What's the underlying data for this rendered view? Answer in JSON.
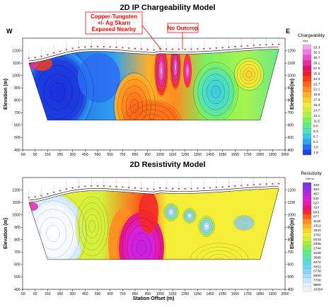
{
  "chart_data": [
    {
      "type": "heatmap",
      "title": "2D IP Chargeability Model",
      "ylabel": "Elevation (m)",
      "xlabel": "",
      "side_labels": {
        "left": "W",
        "right": "E"
      },
      "annotations": [
        {
          "text": [
            "Copper-Tungsten",
            "+/- Ag  Skarn",
            "Exposed Nearby"
          ]
        },
        {
          "text": [
            "No Outcrop"
          ]
        }
      ],
      "xlim": [
        -50,
        2050
      ],
      "ylim": [
        400,
        1300
      ],
      "x_ticks": [
        "-50",
        "50",
        "150",
        "250",
        "350",
        "450",
        "550",
        "650",
        "750",
        "850",
        "950",
        "1050",
        "1150",
        "1250",
        "1350",
        "1450",
        "1550",
        "1650",
        "1750",
        "1850",
        "1950",
        "2050"
      ],
      "y_ticks": [
        {
          "label": "1200",
          "value": 1200
        },
        {
          "label": "1100",
          "value": 1100
        },
        {
          "label": "1000",
          "value": 1000
        },
        {
          "label": "900",
          "value": 900
        },
        {
          "label": "800",
          "value": 800
        },
        {
          "label": "700",
          "value": 700
        },
        {
          "label": "600",
          "value": 600
        },
        {
          "label": "500",
          "value": 500
        },
        {
          "label": "400",
          "value": 400
        }
      ],
      "legend": {
        "title": "Chargeability",
        "unit": "ms/s",
        "levels": [
          "1.9",
          "3.5",
          "5.1",
          "6.7",
          "8.3",
          "9.9",
          "11.5",
          "13.1",
          "14.7",
          "16.3",
          "17.9",
          "19.5",
          "21.1",
          "22.7",
          "24.3",
          "25.9",
          "27.5",
          "29.1",
          "30.7",
          "32.3",
          "33.3"
        ],
        "colors": [
          "#1e40e0",
          "#2a6cf2",
          "#2fa0f2",
          "#39c9e4",
          "#4fe0c0",
          "#5fe890",
          "#7cf060",
          "#a6f450",
          "#cff040",
          "#f0ec38",
          "#ffd030",
          "#ffb028",
          "#ff8c20",
          "#ff6418",
          "#ff3c14",
          "#f01c28",
          "#e01464",
          "#e82aa0",
          "#ee50cc",
          "#f07ce4",
          "#f8a6f0"
        ]
      }
    },
    {
      "type": "heatmap",
      "title": "2D Resistivity Model",
      "ylabel": "Elevation (m)",
      "xlabel": "Station Offset (m)",
      "xlim": [
        -50,
        2050
      ],
      "ylim": [
        400,
        1300
      ],
      "x_ticks": [
        "-50",
        "50",
        "150",
        "250",
        "350",
        "450",
        "550",
        "650",
        "750",
        "850",
        "950",
        "1050",
        "1150",
        "1250",
        "1350",
        "1450",
        "1550",
        "1650",
        "1750",
        "1850",
        "1950",
        "2050"
      ],
      "y_ticks": [
        {
          "label": "1200",
          "value": 1200
        },
        {
          "label": "1100",
          "value": 1100
        },
        {
          "label": "1000",
          "value": 1000
        },
        {
          "label": "900",
          "value": 900
        },
        {
          "label": "800",
          "value": 800
        },
        {
          "label": "700",
          "value": 700
        },
        {
          "label": "600",
          "value": 600
        },
        {
          "label": "500",
          "value": 500
        },
        {
          "label": "400",
          "value": 400
        }
      ],
      "legend": {
        "title": "Resistivity",
        "unit": "Ohm-m",
        "levels": [
          "10354",
          "9500",
          "7708",
          "6650",
          "5738",
          "4951",
          "4272",
          "3686",
          "3180",
          "2744",
          "2368",
          "2043",
          "1762",
          "1521",
          "1312",
          "1132",
          "977",
          "843",
          "727",
          "627",
          "541",
          "467",
          "403",
          "348"
        ],
        "colors": [
          "#f2f2f2",
          "#e0f0ff",
          "#c8e6ff",
          "#aadcff",
          "#8cd4ff",
          "#6ed6f4",
          "#5cdcd8",
          "#5ce4b0",
          "#64ea88",
          "#80ee60",
          "#a8f048",
          "#d4f03c",
          "#f4ee38",
          "#ffd430",
          "#ffb028",
          "#ff8c20",
          "#ff5a18",
          "#f42828",
          "#e8147a",
          "#e41cb4",
          "#d820d8",
          "#b028e0",
          "#9030e0",
          "#7a38d8"
        ]
      }
    }
  ]
}
